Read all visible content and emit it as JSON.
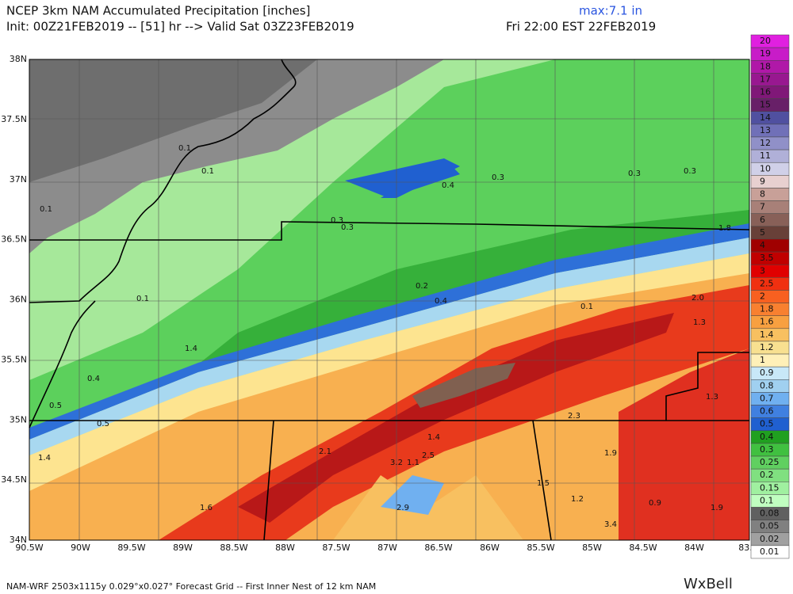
{
  "header": {
    "title": "NCEP 3km NAM Accumulated Precipitation [inches]",
    "init": "Init: 00Z21FEB2019 -- [51] hr --> Valid Sat 03Z23FEB2019",
    "max": "max:7.1 in",
    "valid": "Fri 22:00 EST 22FEB2019"
  },
  "map": {
    "lat_labels": [
      "38N",
      "37.5N",
      "37N",
      "36.5N",
      "36N",
      "35.5N",
      "35N",
      "34.5N",
      "34N"
    ],
    "lon_labels": [
      "90.5W",
      "90W",
      "89.5W",
      "89W",
      "88.5W",
      "88W",
      "87.5W",
      "87W",
      "86.5W",
      "86W",
      "85.5W",
      "85W",
      "84.5W",
      "84W",
      "83."
    ],
    "contour_labels": [
      "0.1",
      "0.1",
      "0.1",
      "0.1",
      "0.3",
      "0.3",
      "0.4",
      "0.3",
      "0.3",
      "0.3",
      "1.8",
      "0.2",
      "0.4",
      "0.1",
      "2.0",
      "1.3",
      "1.4",
      "0.4",
      "0.5",
      "0.5",
      "1.3",
      "2.3",
      "1.4",
      "2.1",
      "3.2",
      "1.1",
      "1.9",
      "1.4",
      "1.5",
      "1.2",
      "1.6",
      "2.9",
      "0.9",
      "1.9",
      "3.4",
      "2.5"
    ]
  },
  "colorbar": {
    "levels": [
      {
        "label": "20",
        "color": "#e020e0"
      },
      {
        "label": "19",
        "color": "#c81cc8"
      },
      {
        "label": "18",
        "color": "#b018a8"
      },
      {
        "label": "17",
        "color": "#981890"
      },
      {
        "label": "16",
        "color": "#801878"
      },
      {
        "label": "15",
        "color": "#682068"
      },
      {
        "label": "14",
        "color": "#5050a0"
      },
      {
        "label": "13",
        "color": "#7070b8"
      },
      {
        "label": "12",
        "color": "#9090c8"
      },
      {
        "label": "11",
        "color": "#b0b0d8"
      },
      {
        "label": "10",
        "color": "#d0d0e8"
      },
      {
        "label": "9",
        "color": "#e8d0d0"
      },
      {
        "label": "8",
        "color": "#c8a098"
      },
      {
        "label": "7",
        "color": "#a88078"
      },
      {
        "label": "6",
        "color": "#886058"
      },
      {
        "label": "5",
        "color": "#684038"
      },
      {
        "label": "4",
        "color": "#a00000"
      },
      {
        "label": "3.5",
        "color": "#c00000"
      },
      {
        "label": "3",
        "color": "#e00000"
      },
      {
        "label": "2.5",
        "color": "#f03010"
      },
      {
        "label": "2",
        "color": "#f86020"
      },
      {
        "label": "1.8",
        "color": "#f88030"
      },
      {
        "label": "1.6",
        "color": "#f8a040"
      },
      {
        "label": "1.4",
        "color": "#f8c060"
      },
      {
        "label": "1.2",
        "color": "#f8e090"
      },
      {
        "label": "1",
        "color": "#fff0b8"
      },
      {
        "label": "0.9",
        "color": "#c8e8f8"
      },
      {
        "label": "0.8",
        "color": "#a0d0f0"
      },
      {
        "label": "0.7",
        "color": "#70b0f0"
      },
      {
        "label": "0.6",
        "color": "#4080e0"
      },
      {
        "label": "0.5",
        "color": "#2060d0"
      },
      {
        "label": "0.4",
        "color": "#20a020"
      },
      {
        "label": "0.3",
        "color": "#40c040"
      },
      {
        "label": "0.25",
        "color": "#60d060"
      },
      {
        "label": "0.2",
        "color": "#80e080"
      },
      {
        "label": "0.15",
        "color": "#a0f0a0"
      },
      {
        "label": "0.1",
        "color": "#c0ffc0"
      },
      {
        "label": "0.08",
        "color": "#606060"
      },
      {
        "label": "0.05",
        "color": "#808080"
      },
      {
        "label": "0.02",
        "color": "#a0a0a0"
      },
      {
        "label": "0.01",
        "color": "#ffffff"
      }
    ]
  },
  "footer": {
    "text": "NAM-WRF 2503x1115y 0.029°x0.027° Forecast Grid -- First Inner Nest of 12 km NAM",
    "logo": "WxBell"
  }
}
